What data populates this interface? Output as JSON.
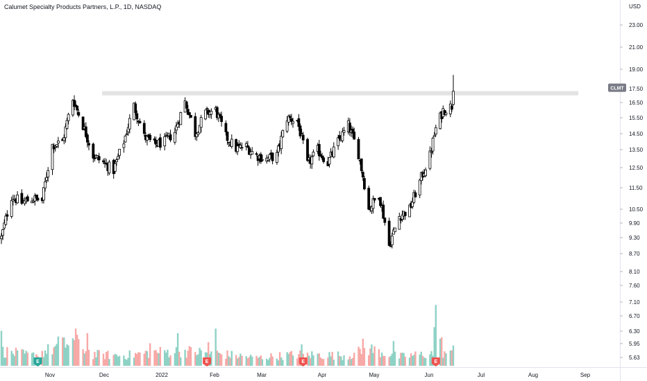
{
  "header": {
    "title": "Calumet Specialty Products Partners, L.P., 1D, NASDAQ"
  },
  "chart_data": {
    "type": "candlestick",
    "currency_label": "USD",
    "price_scale": "log",
    "y_ticks": [
      "23.00",
      "21.00",
      "19.00",
      "17.50",
      "16.50",
      "15.50",
      "14.50",
      "13.50",
      "12.50",
      "11.50",
      "10.50",
      "9.90",
      "9.30",
      "8.70",
      "8.10",
      "7.60",
      "7.10",
      "6.70",
      "6.30",
      "5.95",
      "5.63"
    ],
    "x_ticks": [
      "Nov",
      "Dec",
      "2022",
      "Feb",
      "Mar",
      "Apr",
      "May",
      "Jun",
      "Jul",
      "Aug",
      "Sep"
    ],
    "symbol_badge": "CLMT",
    "last_price": 17.35,
    "resistance_level": 17.2,
    "earnings_markers": [
      {
        "label": "E",
        "date": "Nov 05",
        "kind": "positive"
      },
      {
        "label": "E",
        "date": "Mar 01",
        "kind": "negative"
      },
      {
        "label": "E",
        "date": "May 06",
        "kind": "negative"
      },
      {
        "label": "E",
        "date": "Aug 05",
        "kind": "negative"
      }
    ],
    "price_anchors": [
      [
        "2021-10-11",
        9.3
      ],
      [
        "2021-10-18",
        11.1
      ],
      [
        "2021-10-25",
        10.8
      ],
      [
        "2021-11-01",
        11.0
      ],
      [
        "2021-11-08",
        10.9
      ],
      [
        "2021-11-15",
        13.8
      ],
      [
        "2021-11-22",
        14.0
      ],
      [
        "2021-11-29",
        16.8
      ],
      [
        "2021-12-06",
        15.0
      ],
      [
        "2021-12-13",
        13.2
      ],
      [
        "2021-12-20",
        12.8
      ],
      [
        "2021-12-27",
        12.4
      ],
      [
        "2022-01-03",
        14.0
      ],
      [
        "2022-01-10",
        16.3
      ],
      [
        "2022-01-17",
        14.3
      ],
      [
        "2022-01-24",
        13.8
      ],
      [
        "2022-01-31",
        14.0
      ],
      [
        "2022-02-07",
        14.6
      ],
      [
        "2022-02-14",
        16.6
      ],
      [
        "2022-02-21",
        14.5
      ],
      [
        "2022-02-28",
        15.8
      ],
      [
        "2022-03-07",
        16.0
      ],
      [
        "2022-03-14",
        14.3
      ],
      [
        "2022-03-21",
        13.6
      ],
      [
        "2022-03-28",
        13.7
      ],
      [
        "2022-04-04",
        13.2
      ],
      [
        "2022-04-11",
        13.0
      ],
      [
        "2022-04-18",
        13.2
      ],
      [
        "2022-04-25",
        15.5
      ],
      [
        "2022-05-02",
        15.3
      ],
      [
        "2022-05-09",
        12.7
      ],
      [
        "2022-05-16",
        13.5
      ],
      [
        "2022-05-23",
        12.8
      ],
      [
        "2022-05-30",
        14.0
      ],
      [
        "2022-06-06",
        15.0
      ],
      [
        "2022-06-13",
        13.3
      ],
      [
        "2022-06-20",
        10.5
      ],
      [
        "2022-06-27",
        11.2
      ],
      [
        "2022-07-04",
        9.0
      ],
      [
        "2022-07-11",
        10.2
      ],
      [
        "2022-07-18",
        10.5
      ],
      [
        "2022-07-25",
        11.8
      ],
      [
        "2022-08-01",
        13.2
      ],
      [
        "2022-08-05",
        14.8
      ],
      [
        "2022-08-10",
        16.0
      ],
      [
        "2022-08-16",
        16.3
      ],
      [
        "2022-08-17",
        17.35
      ]
    ],
    "volume_scale_max": 8.0,
    "volume_anchors": [
      [
        "2021-10-11",
        1.3
      ],
      [
        "2021-11-01",
        0.9
      ],
      [
        "2021-11-22",
        1.8
      ],
      [
        "2021-11-29",
        2.2
      ],
      [
        "2021-12-13",
        1.0
      ],
      [
        "2022-01-03",
        0.9
      ],
      [
        "2022-01-24",
        1.2
      ],
      [
        "2022-02-14",
        1.3
      ],
      [
        "2022-03-07",
        1.1
      ],
      [
        "2022-04-04",
        0.7
      ],
      [
        "2022-05-02",
        1.0
      ],
      [
        "2022-06-06",
        0.9
      ],
      [
        "2022-06-20",
        1.5
      ],
      [
        "2022-07-11",
        0.8
      ],
      [
        "2022-08-03",
        1.1
      ],
      [
        "2022-08-05",
        4.6
      ],
      [
        "2022-08-10",
        1.2
      ],
      [
        "2022-08-17",
        1.0
      ]
    ],
    "volume_spikes": [
      [
        "2021-10-11",
        3.1
      ],
      [
        "2021-11-19",
        2.6
      ],
      [
        "2021-12-01",
        3.3
      ],
      [
        "2021-12-09",
        2.9
      ],
      [
        "2022-01-21",
        2.0
      ],
      [
        "2022-02-09",
        2.9
      ],
      [
        "2022-03-02",
        2.1
      ],
      [
        "2022-03-07",
        3.3
      ],
      [
        "2022-05-05",
        1.9
      ],
      [
        "2022-06-16",
        2.4
      ],
      [
        "2022-07-07",
        2.2
      ],
      [
        "2022-08-05",
        5.4
      ],
      [
        "2022-08-08",
        2.4
      ],
      [
        "2022-08-17",
        1.8
      ]
    ],
    "colors": {
      "bull": "#ffffff",
      "bear": "#000000",
      "volume_up": "#8ed2c5",
      "volume_down": "#f7a9a7",
      "earnings_positive": "#26a69a",
      "earnings_negative": "#ef5350",
      "resistance": "#dcdcdc",
      "badge": "#787b86"
    }
  }
}
